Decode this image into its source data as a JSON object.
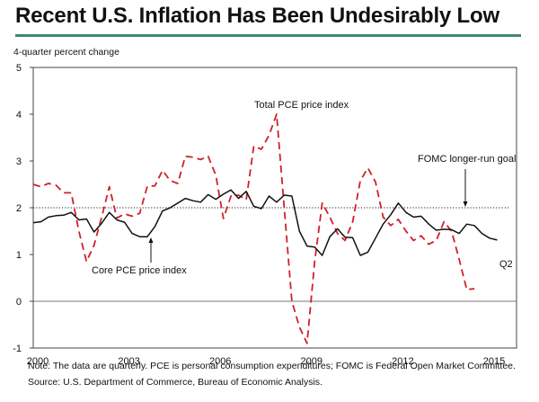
{
  "chart_data": {
    "type": "line",
    "title": "Recent U.S. Inflation Has Been Undesirably Low",
    "ylabel": "4-quarter percent change",
    "xlabel": "",
    "ylim": [
      -1,
      5
    ],
    "xlim": [
      2000,
      2015.75
    ],
    "yticks": [
      "5",
      "4",
      "3",
      "2",
      "1",
      "0",
      "-1"
    ],
    "ytick_values": [
      5,
      4,
      3,
      2,
      1,
      0,
      -1
    ],
    "xticks": [
      "2000",
      "2003",
      "2006",
      "2009",
      "2012",
      "2015"
    ],
    "xtick_values": [
      2000,
      2003,
      2006,
      2009,
      2012,
      2015
    ],
    "grid": false,
    "reference_line": {
      "label": "FOMC longer-run goal",
      "value": 2,
      "style": "dotted"
    },
    "zero_line": true,
    "series": [
      {
        "name": "Total PCE price index",
        "style": "dashed",
        "color": "#d0202a",
        "x_start": 2000,
        "step": 0.25,
        "values": [
          2.5,
          2.45,
          2.52,
          2.48,
          2.32,
          2.32,
          1.5,
          0.85,
          1.2,
          1.8,
          2.45,
          1.78,
          1.87,
          1.82,
          1.88,
          2.46,
          2.47,
          2.8,
          2.58,
          2.52,
          3.1,
          3.08,
          3.03,
          3.1,
          2.7,
          1.77,
          2.25,
          2.27,
          2.17,
          3.32,
          3.25,
          3.55,
          4.0,
          2.0,
          0.0,
          -0.55,
          -0.9,
          0.85,
          2.1,
          1.8,
          1.45,
          1.3,
          1.7,
          2.58,
          2.85,
          2.55,
          1.8,
          1.62,
          1.75,
          1.5,
          1.3,
          1.4,
          1.22,
          1.3,
          1.7,
          1.5,
          0.9,
          0.25,
          0.27
        ],
        "last_label": "Q2"
      },
      {
        "name": "Core PCE price index",
        "style": "solid",
        "color": "#111111",
        "x_start": 2000,
        "step": 0.25,
        "values": [
          1.68,
          1.7,
          1.8,
          1.83,
          1.84,
          1.9,
          1.74,
          1.76,
          1.48,
          1.67,
          1.9,
          1.74,
          1.69,
          1.45,
          1.38,
          1.38,
          1.6,
          1.93,
          2.0,
          2.1,
          2.2,
          2.15,
          2.12,
          2.28,
          2.18,
          2.29,
          2.38,
          2.2,
          2.35,
          2.03,
          1.98,
          2.25,
          2.12,
          2.27,
          2.25,
          1.5,
          1.18,
          1.16,
          0.98,
          1.38,
          1.55,
          1.37,
          1.36,
          0.98,
          1.05,
          1.35,
          1.65,
          1.85,
          2.1,
          1.9,
          1.8,
          1.82,
          1.65,
          1.52,
          1.54,
          1.53,
          1.45,
          1.65,
          1.62,
          1.45,
          1.35,
          1.31
        ]
      }
    ],
    "annotations": [
      {
        "text": "Total PCE price index"
      },
      {
        "text": "Core PCE price index"
      },
      {
        "text": "FOMC longer-run goal"
      },
      {
        "text": "Q2"
      }
    ]
  },
  "header": {
    "title": "Recent U.S. Inflation Has Been Undesirably Low",
    "ylabel": "4-quarter percent change"
  },
  "footer": {
    "note": "Note:  The data are quarterly.  PCE is personal consumption expenditures;  FOMC is Federal Open Market Committee.",
    "source": "Source:  U.S. Department of Commerce, Bureau of Economic Analysis."
  },
  "colors": {
    "rule": "#3f8a6b",
    "total_pce": "#d0202a",
    "core_pce": "#111111"
  }
}
